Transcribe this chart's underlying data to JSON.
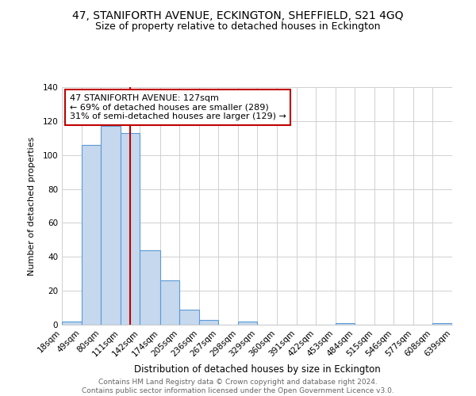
{
  "title": "47, STANIFORTH AVENUE, ECKINGTON, SHEFFIELD, S21 4GQ",
  "subtitle": "Size of property relative to detached houses in Eckington",
  "xlabel": "Distribution of detached houses by size in Eckington",
  "ylabel": "Number of detached properties",
  "footer_line1": "Contains HM Land Registry data © Crown copyright and database right 2024.",
  "footer_line2": "Contains public sector information licensed under the Open Government Licence v3.0.",
  "bin_edges": [
    18,
    49,
    80,
    111,
    142,
    174,
    205,
    236,
    267,
    298,
    329,
    360,
    391,
    422,
    453,
    484,
    515,
    546,
    577,
    608,
    639
  ],
  "bar_heights": [
    2,
    106,
    117,
    113,
    44,
    26,
    9,
    3,
    0,
    2,
    0,
    0,
    0,
    0,
    1,
    0,
    0,
    0,
    0,
    1
  ],
  "bar_color": "#c5d8ed",
  "bar_edge_color": "#5b9bd5",
  "property_size": 127,
  "annotation_line1": "47 STANIFORTH AVENUE: 127sqm",
  "annotation_line2": "← 69% of detached houses are smaller (289)",
  "annotation_line3": "31% of semi-detached houses are larger (129) →",
  "annotation_box_color": "#ffffff",
  "annotation_box_edge_color": "#c00000",
  "vline_color": "#c00000",
  "ylim": [
    0,
    140
  ],
  "yticks": [
    0,
    20,
    40,
    60,
    80,
    100,
    120,
    140
  ],
  "grid_color": "#d0d0d0",
  "background_color": "#ffffff",
  "tick_label_fontsize": 7.5,
  "title_fontsize": 10,
  "subtitle_fontsize": 9,
  "xlabel_fontsize": 8.5,
  "ylabel_fontsize": 8,
  "annotation_fontsize": 8,
  "footer_fontsize": 6.5,
  "footer_color": "#666666"
}
